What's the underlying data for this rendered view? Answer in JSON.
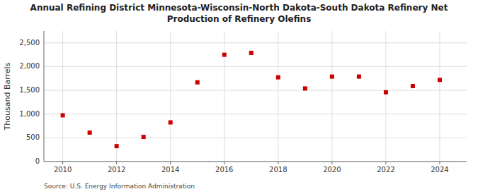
{
  "chart_data": {
    "type": "scatter",
    "title": "Annual Refining District Minnesota-Wisconsin-North Dakota-South Dakota Refinery Net\nProduction of Refinery Olefins",
    "y_label": "Thousand Barrels",
    "annotations": [
      "Source: U.S. Energy Information Administration"
    ],
    "x": [
      2010,
      2011,
      2012,
      2013,
      2014,
      2015,
      2016,
      2017,
      2018,
      2019,
      2020,
      2021,
      2022,
      2023,
      2024
    ],
    "values": [
      975,
      610,
      325,
      520,
      825,
      1670,
      2250,
      2290,
      1775,
      1540,
      1790,
      1790,
      1460,
      1590,
      1720
    ],
    "color": "#cc0000",
    "marker": "square",
    "xlim": [
      2009.3,
      2025.0
    ],
    "xticks": [
      2010,
      2012,
      2014,
      2016,
      2018,
      2020,
      2022,
      2024
    ],
    "ylim": [
      0,
      2750
    ],
    "yticks": [
      0,
      500,
      {
        "value": 1000,
        "label": "1,000"
      },
      {
        "value": 1500,
        "label": "1,500"
      },
      {
        "value": 2000,
        "label": "2,000"
      },
      {
        "value": 2500,
        "label": "2,500"
      }
    ],
    "grid": true
  }
}
